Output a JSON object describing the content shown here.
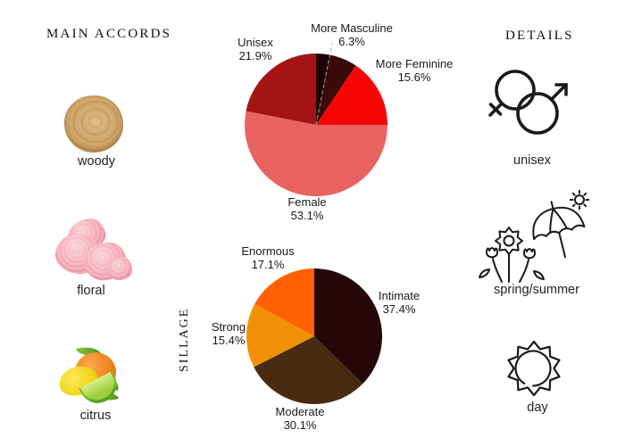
{
  "left_panel": {
    "heading": "MAIN ACCORDS",
    "accords": [
      {
        "label": "woody",
        "image": "wood-slice-photo"
      },
      {
        "label": "floral",
        "image": "pink-carnation-photo"
      },
      {
        "label": "citrus",
        "image": "citrus-fruits-photo"
      }
    ]
  },
  "right_panel": {
    "heading": "DETAILS",
    "details": [
      {
        "label": "unisex",
        "icon": "gender-unisex-icon"
      },
      {
        "label": "spring/summer",
        "icon": "flowers-umbrella-sun-icon"
      },
      {
        "label": "day",
        "icon": "sun-icon"
      }
    ]
  },
  "chart_data": [
    {
      "type": "pie",
      "name": "gender-appeal",
      "start_angle": "12-oclock",
      "direction": "clockwise",
      "dashed_divider_after_slice": 0,
      "divider_color": "#a9a9a9",
      "slices": [
        {
          "label": "",
          "pct_label": "",
          "value": 3.1,
          "color": "#1c0405"
        },
        {
          "label": "More Masculine",
          "pct_label": "6.3%",
          "value": 6.3,
          "color": "#3a0a0b"
        },
        {
          "label": "More Feminine",
          "pct_label": "15.6%",
          "value": 15.6,
          "color": "#f90505"
        },
        {
          "label": "Female",
          "pct_label": "53.1%",
          "value": 53.1,
          "color": "#e96362"
        },
        {
          "label": "Unisex",
          "pct_label": "21.9%",
          "value": 21.9,
          "color": "#a51414"
        }
      ]
    },
    {
      "type": "pie",
      "name": "sillage",
      "axis_label": "SILLAGE",
      "start_angle": "12-oclock",
      "direction": "clockwise",
      "slices": [
        {
          "label": "Intimate",
          "pct_label": "37.4%",
          "value": 37.4,
          "color": "#260709"
        },
        {
          "label": "Moderate",
          "pct_label": "30.1%",
          "value": 30.1,
          "color": "#482b10"
        },
        {
          "label": "Strong",
          "pct_label": "15.4%",
          "value": 15.4,
          "color": "#f29108"
        },
        {
          "label": "Enormous",
          "pct_label": "17.1%",
          "value": 17.1,
          "color": "#ff6103"
        }
      ]
    }
  ]
}
